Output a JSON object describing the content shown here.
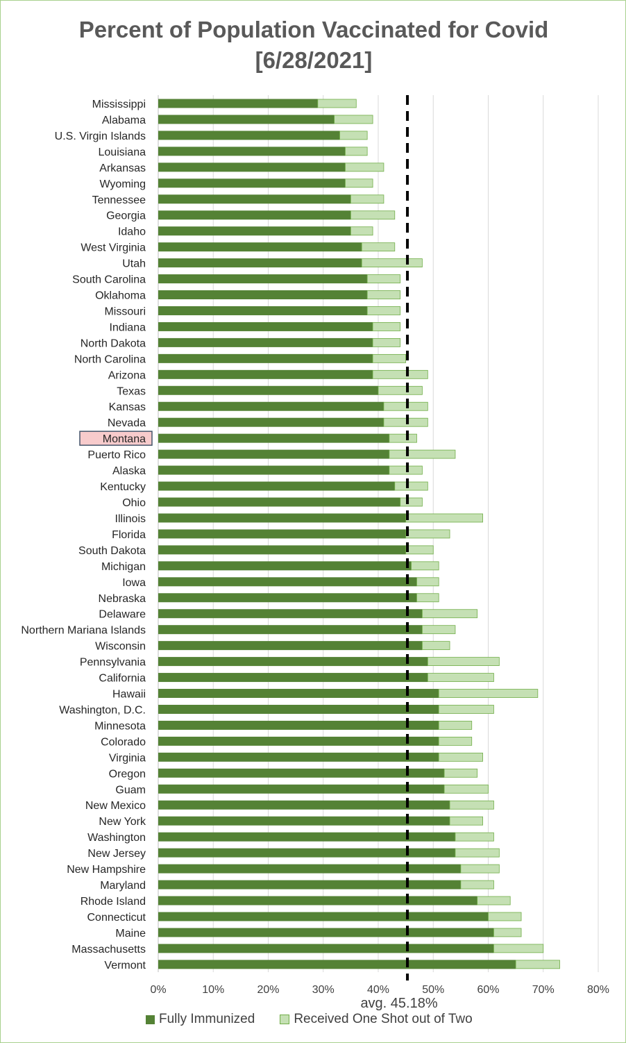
{
  "chart_data": {
    "type": "bar",
    "orientation": "horizontal",
    "stacked": true,
    "title": "Percent of Population Vaccinated for Covid",
    "subtitle": "[6/28/2021]",
    "x_ticks": [
      "0%",
      "10%",
      "20%",
      "30%",
      "40%",
      "50%",
      "60%",
      "70%",
      "80%"
    ],
    "xlim": [
      0,
      80
    ],
    "grid": "vertical",
    "legend_position": "bottom",
    "highlight_category": "Montana",
    "average": {
      "value": 45.18,
      "label": "avg. 45.18%"
    },
    "colors": {
      "fully": "#548235",
      "one_shot": "#c5e0b4",
      "one_shot_border": "#70ad47",
      "highlight_bg": "#f8cbcc",
      "highlight_border": "#44546a"
    },
    "categories": [
      "Mississippi",
      "Alabama",
      "U.S. Virgin Islands",
      "Louisiana",
      "Arkansas",
      "Wyoming",
      "Tennessee",
      "Georgia",
      "Idaho",
      "West Virginia",
      "Utah",
      "South Carolina",
      "Oklahoma",
      "Missouri",
      "Indiana",
      "North Dakota",
      "North Carolina",
      "Arizona",
      "Texas",
      "Kansas",
      "Nevada",
      "Montana",
      "Puerto Rico",
      "Alaska",
      "Kentucky",
      "Ohio",
      "Illinois",
      "Florida",
      "South Dakota",
      "Michigan",
      "Iowa",
      "Nebraska",
      "Delaware",
      "Northern Mariana Islands",
      "Wisconsin",
      "Pennsylvania",
      "California",
      "Hawaii",
      "Washington, D.C.",
      "Minnesota",
      "Colorado",
      "Virginia",
      "Oregon",
      "Guam",
      "New Mexico",
      "New York",
      "Washington",
      "New Jersey",
      "New Hampshire",
      "Maryland",
      "Rhode Island",
      "Connecticut",
      "Maine",
      "Massachusetts",
      "Vermont"
    ],
    "series": [
      {
        "name": "Fully Immunized",
        "values": [
          29,
          32,
          33,
          34,
          34,
          34,
          35,
          35,
          35,
          37,
          37,
          38,
          38,
          38,
          39,
          39,
          39,
          39,
          40,
          41,
          41,
          42,
          42,
          42,
          43,
          44,
          45,
          45,
          45,
          46,
          47,
          47,
          48,
          48,
          48,
          49,
          49,
          51,
          51,
          51,
          51,
          51,
          52,
          52,
          53,
          53,
          54,
          54,
          55,
          55,
          58,
          60,
          61,
          61,
          65
        ]
      },
      {
        "name": "Received One Shot out of Two",
        "values": [
          7,
          7,
          5,
          4,
          7,
          5,
          6,
          8,
          4,
          6,
          11,
          6,
          6,
          6,
          5,
          5,
          6,
          10,
          8,
          8,
          8,
          5,
          12,
          6,
          6,
          4,
          14,
          8,
          5,
          5,
          4,
          4,
          10,
          6,
          5,
          13,
          12,
          18,
          10,
          6,
          6,
          8,
          6,
          8,
          8,
          6,
          7,
          8,
          7,
          6,
          6,
          6,
          5,
          9,
          8
        ]
      }
    ]
  }
}
